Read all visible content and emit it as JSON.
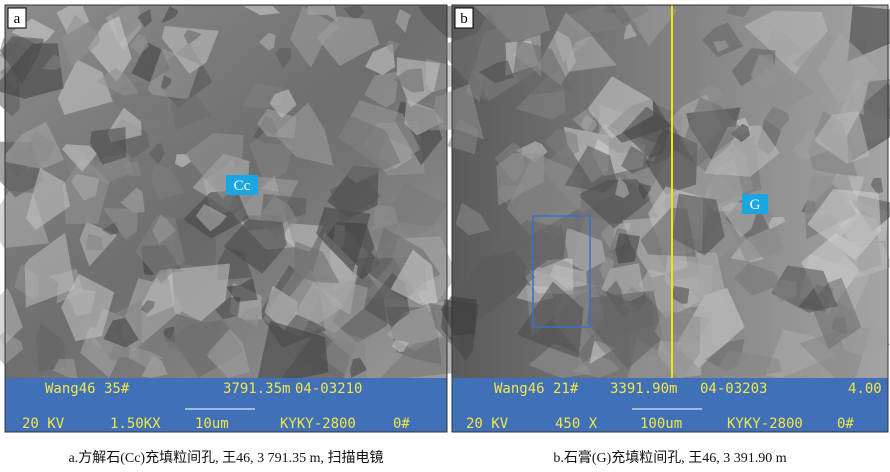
{
  "panels": [
    {
      "label": "a",
      "marker": "Cc",
      "info_top": [
        "Wang46 35#",
        "3791.35m",
        "04-03210"
      ],
      "info_bottom": [
        "20 KV",
        "1.50KX",
        "10um",
        "KYKY-2800",
        "0#"
      ],
      "caption": "a.方解石(Cc)充填粒间孔, 王46, 3 791.35 m, 扫描电镜"
    },
    {
      "label": "b",
      "marker": "G",
      "info_top": [
        "Wang46 21#",
        "3391.90m",
        "04-03203",
        "4.00"
      ],
      "info_bottom": [
        "20 KV",
        "450 X",
        "100um",
        "KYKY-2800",
        "0#"
      ],
      "caption": "b.石膏(G)充填粒间孔,  王46, 3 391.90 m"
    }
  ]
}
